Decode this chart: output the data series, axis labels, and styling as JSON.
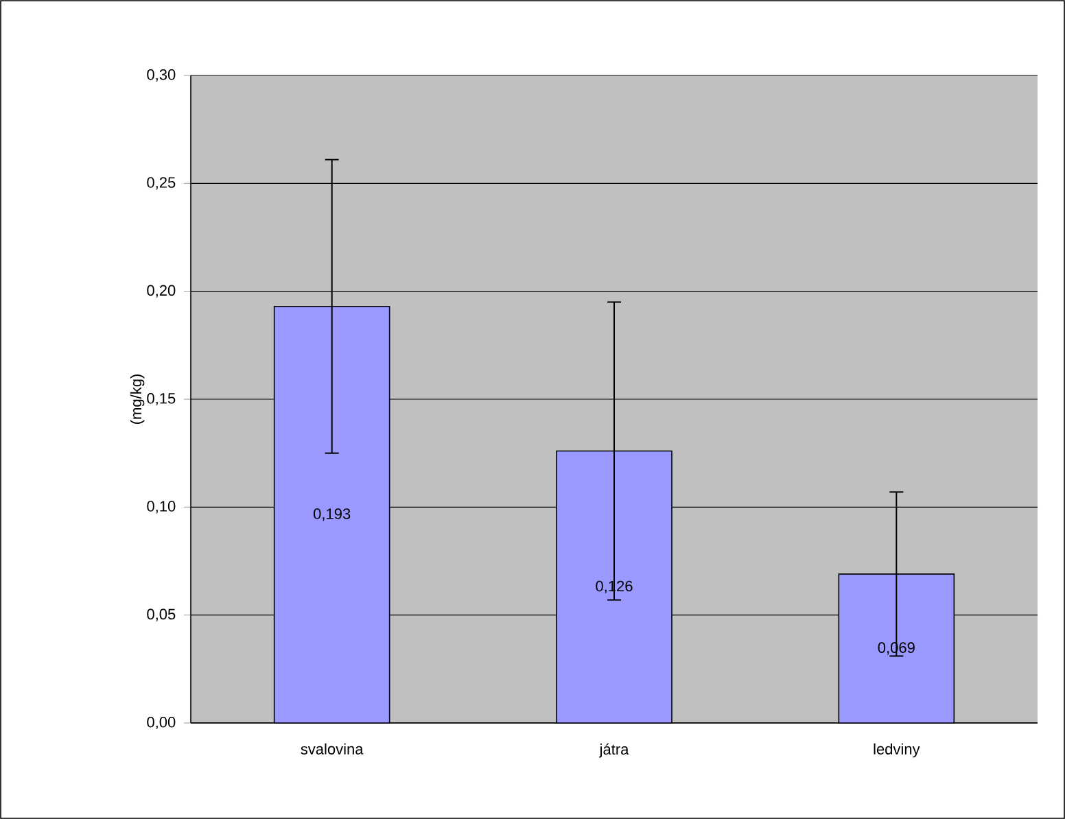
{
  "chart_data": {
    "type": "bar",
    "ylabel": "(mg/kg)",
    "categories": [
      "svalovina",
      "játra",
      "ledviny"
    ],
    "values": [
      0.193,
      0.126,
      0.069
    ],
    "value_labels": [
      "0,193",
      "0,126",
      "0,069"
    ],
    "errors": [
      0.068,
      0.069,
      0.038
    ],
    "color": "#9999ff",
    "ylim": [
      0,
      0.3
    ],
    "yticks": [
      {
        "value": 0,
        "label": "0,00"
      },
      {
        "value": 0.05,
        "label": "0,05"
      },
      {
        "value": 0.1,
        "label": "0,10"
      },
      {
        "value": 0.15,
        "label": "0,15"
      },
      {
        "value": 0.2,
        "label": "0,20"
      },
      {
        "value": 0.25,
        "label": "0,25"
      },
      {
        "value": 0.3,
        "label": "0,30"
      }
    ],
    "grid": true
  }
}
